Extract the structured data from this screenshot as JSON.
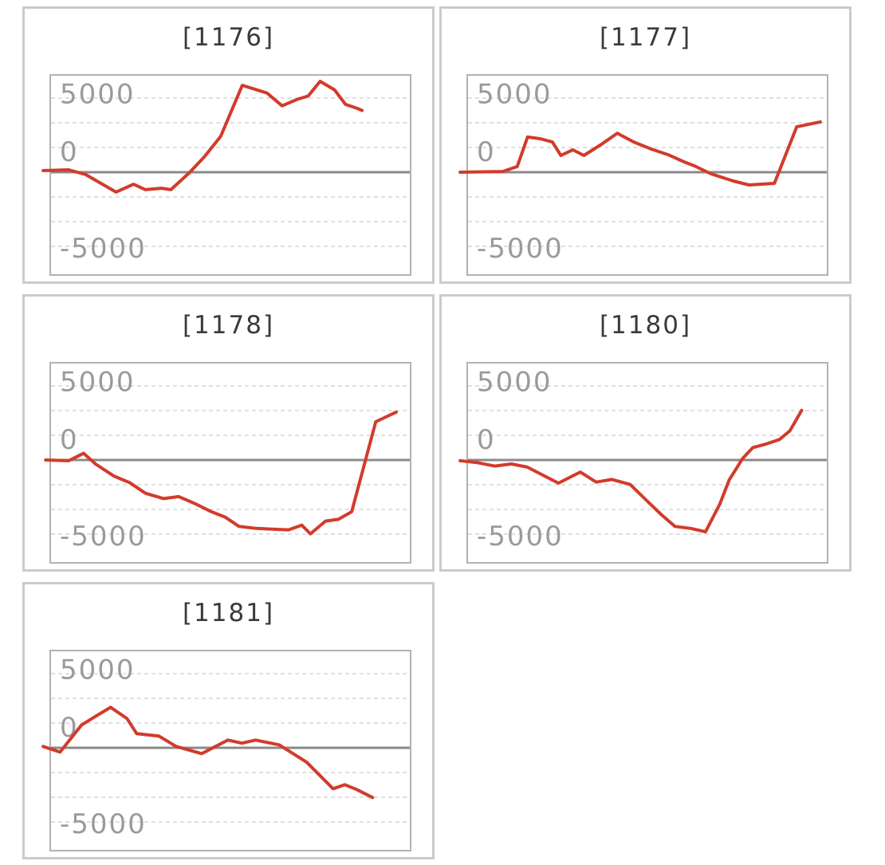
{
  "page": {
    "background": "#ffffff",
    "description": "Grid of five profit line graphs labeled by machine number"
  },
  "style": {
    "line_color": "#d23b2c",
    "grid_color": "#d5d5d5",
    "zero_line_color": "#8a8a8a",
    "plot_border_color": "#b2b2b2",
    "card_border_color": "#cbcbcb",
    "title_color": "#3a3a3a",
    "tick_label_color": "#9a9a9a"
  },
  "y_axis": {
    "tick_labels": [
      "5000",
      "0",
      "-5000"
    ],
    "tick_values": [
      5000,
      0,
      -5000
    ],
    "gridline_values": [
      5000,
      3333,
      1667,
      0,
      -1667,
      -3333,
      -5000
    ],
    "ylim": [
      -6880,
      6610
    ],
    "grid_style": "dashed",
    "zero_line": "solid"
  },
  "x_axis": {
    "labels_visible": false
  },
  "chart_data": [
    {
      "type": "line",
      "title": "[1176]",
      "ylim": [
        -6880,
        6610
      ],
      "points": [
        [
          -0.022,
          110
        ],
        [
          0.049,
          160
        ],
        [
          0.097,
          -160
        ],
        [
          0.181,
          -1340
        ],
        [
          0.23,
          -810
        ],
        [
          0.263,
          -1180
        ],
        [
          0.308,
          -1080
        ],
        [
          0.334,
          -1180
        ],
        [
          0.385,
          -50
        ],
        [
          0.429,
          1080
        ],
        [
          0.473,
          2420
        ],
        [
          0.533,
          5860
        ],
        [
          0.602,
          5340
        ],
        [
          0.644,
          4480
        ],
        [
          0.688,
          4930
        ],
        [
          0.717,
          5140
        ],
        [
          0.75,
          6130
        ],
        [
          0.79,
          5560
        ],
        [
          0.821,
          4570
        ],
        [
          0.854,
          4300
        ],
        [
          0.867,
          4160
        ]
      ]
    },
    {
      "type": "line",
      "title": "[1177]",
      "ylim": [
        -6880,
        6610
      ],
      "points": [
        [
          -0.022,
          0
        ],
        [
          0.097,
          50
        ],
        [
          0.137,
          380
        ],
        [
          0.166,
          2370
        ],
        [
          0.201,
          2260
        ],
        [
          0.235,
          2040
        ],
        [
          0.259,
          1130
        ],
        [
          0.292,
          1510
        ],
        [
          0.323,
          1130
        ],
        [
          0.372,
          1880
        ],
        [
          0.416,
          2630
        ],
        [
          0.462,
          2040
        ],
        [
          0.511,
          1560
        ],
        [
          0.558,
          1180
        ],
        [
          0.602,
          700
        ],
        [
          0.631,
          430
        ],
        [
          0.677,
          -110
        ],
        [
          0.739,
          -590
        ],
        [
          0.783,
          -860
        ],
        [
          0.854,
          -750
        ],
        [
          0.916,
          3060
        ],
        [
          0.982,
          3390
        ]
      ]
    },
    {
      "type": "line",
      "title": "[1178]",
      "ylim": [
        -6880,
        6610
      ],
      "points": [
        [
          -0.015,
          0
        ],
        [
          0.049,
          -50
        ],
        [
          0.091,
          450
        ],
        [
          0.124,
          -270
        ],
        [
          0.175,
          -1080
        ],
        [
          0.219,
          -1520
        ],
        [
          0.263,
          -2240
        ],
        [
          0.314,
          -2600
        ],
        [
          0.356,
          -2470
        ],
        [
          0.403,
          -2960
        ],
        [
          0.447,
          -3490
        ],
        [
          0.485,
          -3850
        ],
        [
          0.524,
          -4480
        ],
        [
          0.573,
          -4610
        ],
        [
          0.617,
          -4660
        ],
        [
          0.662,
          -4710
        ],
        [
          0.699,
          -4390
        ],
        [
          0.723,
          -4980
        ],
        [
          0.765,
          -4120
        ],
        [
          0.801,
          -4000
        ],
        [
          0.838,
          -3490
        ],
        [
          0.905,
          2580
        ],
        [
          0.962,
          3230
        ]
      ]
    },
    {
      "type": "line",
      "title": "[1180]",
      "ylim": [
        -6880,
        6610
      ],
      "points": [
        [
          -0.022,
          -50
        ],
        [
          0.026,
          -180
        ],
        [
          0.074,
          -410
        ],
        [
          0.121,
          -270
        ],
        [
          0.165,
          -480
        ],
        [
          0.252,
          -1560
        ],
        [
          0.313,
          -810
        ],
        [
          0.357,
          -1490
        ],
        [
          0.401,
          -1310
        ],
        [
          0.452,
          -1650
        ],
        [
          0.496,
          -2690
        ],
        [
          0.54,
          -3710
        ],
        [
          0.577,
          -4480
        ],
        [
          0.621,
          -4610
        ],
        [
          0.662,
          -4840
        ],
        [
          0.702,
          -2960
        ],
        [
          0.728,
          -1340
        ],
        [
          0.765,
          90
        ],
        [
          0.794,
          840
        ],
        [
          0.831,
          1080
        ],
        [
          0.868,
          1380
        ],
        [
          0.897,
          1970
        ],
        [
          0.93,
          3350
        ]
      ]
    },
    {
      "type": "line",
      "title": "[1181]",
      "ylim": [
        -6880,
        6610
      ],
      "points": [
        [
          -0.022,
          90
        ],
        [
          0.025,
          -290
        ],
        [
          0.085,
          1540
        ],
        [
          0.118,
          2030
        ],
        [
          0.166,
          2730
        ],
        [
          0.212,
          1970
        ],
        [
          0.239,
          950
        ],
        [
          0.301,
          790
        ],
        [
          0.349,
          90
        ],
        [
          0.42,
          -390
        ],
        [
          0.493,
          520
        ],
        [
          0.532,
          310
        ],
        [
          0.57,
          520
        ],
        [
          0.636,
          200
        ],
        [
          0.713,
          -980
        ],
        [
          0.786,
          -2760
        ],
        [
          0.819,
          -2490
        ],
        [
          0.852,
          -2810
        ],
        [
          0.896,
          -3350
        ]
      ]
    }
  ]
}
